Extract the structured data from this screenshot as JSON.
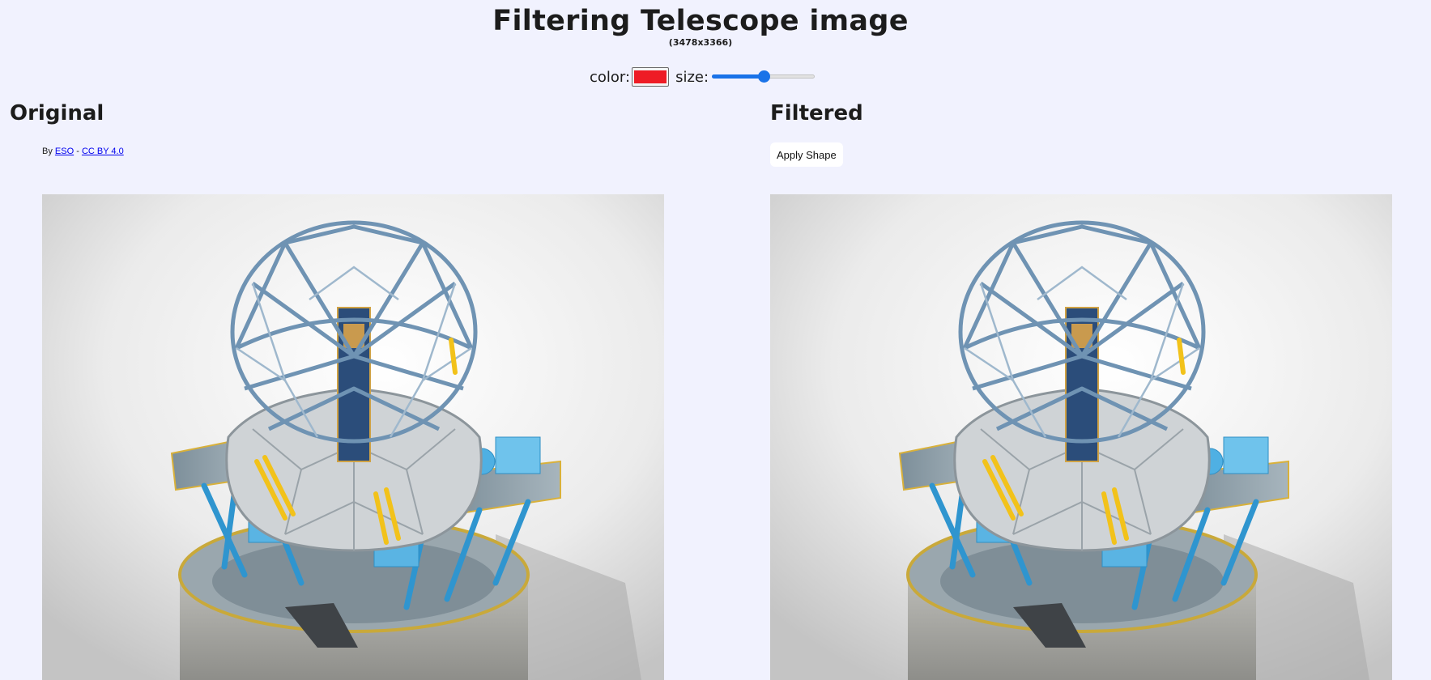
{
  "header": {
    "title": "Filtering Telescope image",
    "dimensions": "(3478x3366)"
  },
  "controls": {
    "color_label": "color:",
    "color_value": "#ee1c25",
    "size_label": "size:",
    "size_value_fraction": 0.5
  },
  "original": {
    "heading": "Original",
    "credit_prefix": "By",
    "credit_author": "ESO",
    "credit_separator": "-",
    "credit_license": "CC BY 4.0",
    "image_icon": "telescope-render-image"
  },
  "filtered": {
    "heading": "Filtered",
    "apply_button": "Apply Shape",
    "image_icon": "telescope-render-image"
  }
}
